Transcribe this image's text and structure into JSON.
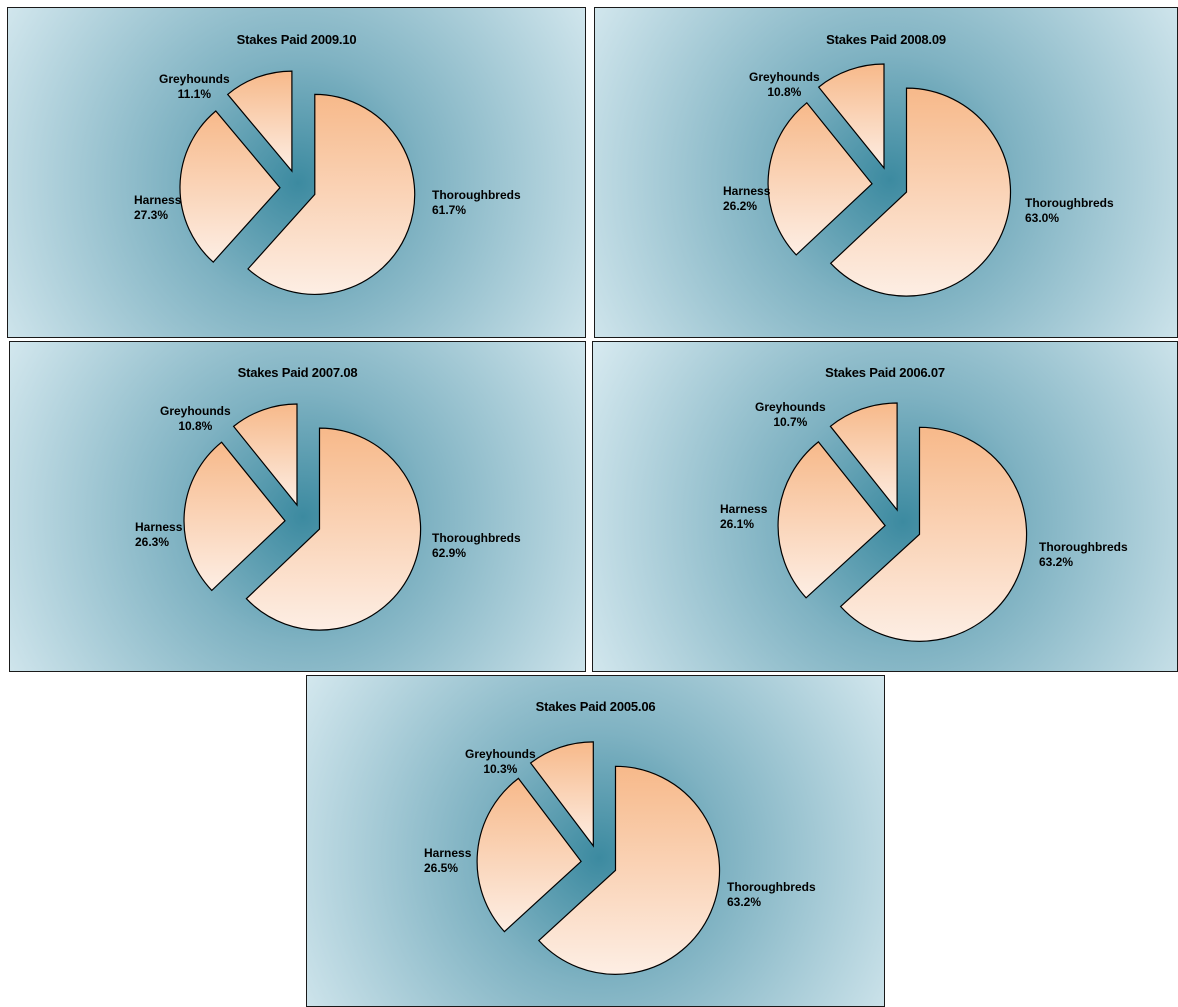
{
  "chart_data": [
    {
      "type": "pie",
      "title": "Stakes Paid 2009.10",
      "slices": [
        {
          "name": "Thoroughbreds",
          "value": 61.7,
          "label": "61.7%"
        },
        {
          "name": "Harness",
          "value": 27.3,
          "label": "27.3%"
        },
        {
          "name": "Greyhounds",
          "value": 11.1,
          "label": "11.1%"
        }
      ],
      "exploded": true
    },
    {
      "type": "pie",
      "title": "Stakes Paid 2008.09",
      "slices": [
        {
          "name": "Thoroughbreds",
          "value": 63.0,
          "label": "63.0%"
        },
        {
          "name": "Harness",
          "value": 26.2,
          "label": "26.2%"
        },
        {
          "name": "Greyhounds",
          "value": 10.8,
          "label": "10.8%"
        }
      ],
      "exploded": true
    },
    {
      "type": "pie",
      "title": "Stakes Paid 2007.08",
      "slices": [
        {
          "name": "Thoroughbreds",
          "value": 62.9,
          "label": "62.9%"
        },
        {
          "name": "Harness",
          "value": 26.3,
          "label": "26.3%"
        },
        {
          "name": "Greyhounds",
          "value": 10.8,
          "label": "10.8%"
        }
      ],
      "exploded": true
    },
    {
      "type": "pie",
      "title": "Stakes Paid 2006.07",
      "slices": [
        {
          "name": "Thoroughbreds",
          "value": 63.2,
          "label": "63.2%"
        },
        {
          "name": "Harness",
          "value": 26.1,
          "label": "26.1%"
        },
        {
          "name": "Greyhounds",
          "value": 10.7,
          "label": "10.7%"
        }
      ],
      "exploded": true
    },
    {
      "type": "pie",
      "title": "Stakes Paid 2005.06",
      "slices": [
        {
          "name": "Thoroughbreds",
          "value": 63.2,
          "label": "63.2%"
        },
        {
          "name": "Harness",
          "value": 26.5,
          "label": "26.5%"
        },
        {
          "name": "Greyhounds",
          "value": 10.3,
          "label": "10.3%"
        }
      ],
      "exploded": true
    }
  ],
  "colors": {
    "panel_center": "#3c8aa0",
    "panel_edge": "#d9ebf1",
    "slice_top": "#f7b98a",
    "slice_bottom": "#fdeee4",
    "outline": "#000000"
  }
}
